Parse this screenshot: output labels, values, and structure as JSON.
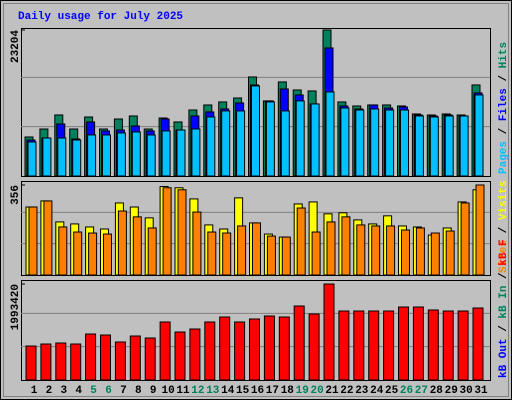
{
  "chart_data": [
    {
      "type": "bar",
      "title": "Daily usage for July 2025",
      "legend_separator": "/",
      "ylim": [
        0,
        23204
      ],
      "yticks": [
        23204
      ],
      "series": [
        {
          "name": "Hits",
          "color": "#00805c",
          "values": [
            6200,
            7470,
            9700,
            7470,
            9380,
            7470,
            9060,
            9540,
            7470,
            9220,
            8590,
            10490,
            11290,
            11770,
            12400,
            15740,
            11930,
            14950,
            13670,
            13520,
            23204,
            11770,
            11130,
            11290,
            11290,
            11130,
            9860,
            9700,
            9860,
            9700,
            14470
          ]
        },
        {
          "name": "Files",
          "color": "#0000ff",
          "values": [
            5720,
            6040,
            8270,
            5880,
            8590,
            7160,
            7310,
            7950,
            7160,
            9060,
            7310,
            9540,
            10180,
            10650,
            11610,
            14470,
            11930,
            13830,
            12880,
            11450,
            20350,
            11130,
            10650,
            11290,
            10810,
            10970,
            9700,
            9540,
            9700,
            9540,
            13200
          ]
        },
        {
          "name": "Pages",
          "color": "#00c0ff",
          "values": [
            5410,
            6040,
            6040,
            5720,
            6520,
            6520,
            6840,
            7000,
            6520,
            7160,
            7310,
            7470,
            9380,
            10340,
            10340,
            14310,
            11770,
            10340,
            11930,
            11450,
            13360,
            10810,
            10490,
            10650,
            10490,
            10490,
            9540,
            9380,
            9540,
            9540,
            12880
          ]
        }
      ]
    },
    {
      "type": "bar",
      "legend_separator": "/",
      "ylim": [
        0,
        356
      ],
      "yticks": [
        356
      ],
      "series": [
        {
          "name": "Visits",
          "color": "#ffff00",
          "values": [
            269,
            293,
            210,
            202,
            190,
            182,
            285,
            269,
            226,
            350,
            345,
            301,
            198,
            182,
            305,
            206,
            162,
            150,
            281,
            289,
            242,
            246,
            218,
            202,
            234,
            194,
            190,
            158,
            186,
            289,
            337
          ]
        },
        {
          "name": "Sites",
          "color": "#ff8000",
          "values": [
            269,
            293,
            190,
            170,
            166,
            162,
            253,
            230,
            186,
            345,
            337,
            249,
            170,
            166,
            194,
            206,
            154,
            150,
            265,
            170,
            210,
            230,
            198,
            194,
            194,
            178,
            186,
            166,
            174,
            285,
            356
          ]
        }
      ]
    },
    {
      "type": "bar",
      "legend_separator": "/",
      "ylim": [
        0,
        1993420
      ],
      "yticks": [
        1993420
      ],
      "categories": [
        "1",
        "2",
        "3",
        "4",
        "5",
        "6",
        "7",
        "8",
        "9",
        "10",
        "11",
        "12",
        "13",
        "14",
        "15",
        "16",
        "17",
        "18",
        "19",
        "20",
        "21",
        "22",
        "23",
        "24",
        "25",
        "26",
        "27",
        "28",
        "29",
        "30",
        "31"
      ],
      "highlight_categories": [
        "5",
        "6",
        "12",
        "13",
        "19",
        "20",
        "26",
        "27"
      ],
      "highlight_color": "#00805c",
      "series": [
        {
          "name": "kB F",
          "color": "#ff0000",
          "values": [
            706000,
            747500,
            768300,
            747500,
            955200,
            934400,
            789100,
            913700,
            872100,
            1204400,
            996700,
            1059000,
            1204400,
            1308200,
            1204400,
            1266700,
            1329000,
            1308200,
            1536600,
            1370500,
            1993420,
            1432800,
            1432800,
            1432800,
            1432800,
            1515800,
            1515800,
            1453600,
            1432800,
            1432800,
            1495100
          ]
        },
        {
          "name": "kB In",
          "color": "#00805c",
          "values": [
            0,
            0,
            0,
            0,
            0,
            0,
            0,
            0,
            0,
            0,
            0,
            0,
            0,
            0,
            0,
            0,
            0,
            0,
            0,
            0,
            0,
            0,
            0,
            0,
            0,
            0,
            0,
            0,
            0,
            0,
            0
          ]
        },
        {
          "name": "kB Out",
          "color": "#0000ff",
          "values": [
            0,
            0,
            0,
            0,
            0,
            0,
            0,
            0,
            0,
            0,
            0,
            0,
            0,
            0,
            0,
            0,
            0,
            0,
            0,
            0,
            0,
            0,
            0,
            0,
            0,
            0,
            0,
            0,
            0,
            0,
            0
          ]
        }
      ]
    }
  ]
}
